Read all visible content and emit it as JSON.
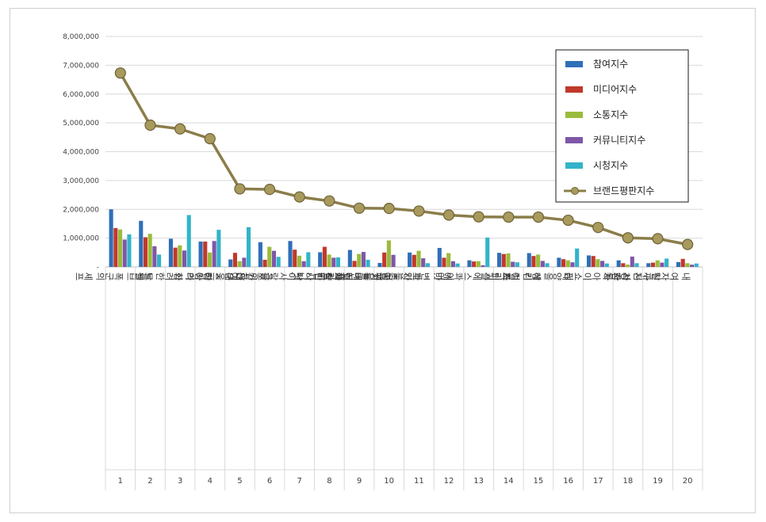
{
  "chart_data": {
    "type": "bar",
    "ylim": [
      0,
      8000000
    ],
    "yticks": [
      "8,000,000",
      "7,000,000",
      "6,000,000",
      "5,000,000",
      "4,000,000",
      "3,000,000",
      "2,000,000",
      "1,000,000",
      "-"
    ],
    "grid": true,
    "legend_position": "top-right",
    "categories": [
      "폭군의 셰프",
      "트웰브",
      "화려한 날들",
      "여왕의 집",
      "대운을 잡아라",
      "금쪽같은 내 스타",
      "첫, 사랑을 위하여",
      "착한사나이",
      "버터플라이",
      "여행을 대신해 드립니다",
      "파인: 촌뜨기들",
      "애마",
      "에스콰이어: 변호사를 꿈꾸는 변호사들",
      "트리거",
      "메리 킬즈 피플",
      "태양을 삼킨 여자",
      "아이쇼핑",
      "서초동",
      "달까지 가자",
      "내 여자친구는 상남자"
    ],
    "ranks": [
      "1",
      "2",
      "3",
      "4",
      "5",
      "6",
      "7",
      "8",
      "9",
      "10",
      "11",
      "12",
      "13",
      "14",
      "15",
      "16",
      "17",
      "18",
      "19",
      "20"
    ],
    "series": [
      {
        "name": "참여지수",
        "kind": "bar",
        "color": "#2f6fb8",
        "values": [
          2000000,
          1600000,
          980000,
          880000,
          260000,
          860000,
          900000,
          510000,
          590000,
          140000,
          500000,
          660000,
          230000,
          490000,
          480000,
          320000,
          400000,
          230000,
          130000,
          170000
        ]
      },
      {
        "name": "미디어지수",
        "kind": "bar",
        "color": "#c0392b",
        "values": [
          1350000,
          1030000,
          670000,
          880000,
          490000,
          250000,
          600000,
          700000,
          210000,
          500000,
          420000,
          320000,
          190000,
          450000,
          380000,
          270000,
          380000,
          130000,
          150000,
          280000
        ]
      },
      {
        "name": "소통지수",
        "kind": "bar",
        "color": "#9bbb3c",
        "values": [
          1300000,
          1150000,
          750000,
          500000,
          200000,
          700000,
          390000,
          430000,
          450000,
          920000,
          560000,
          480000,
          200000,
          470000,
          430000,
          230000,
          270000,
          80000,
          230000,
          130000
        ]
      },
      {
        "name": "커뮤니티지수",
        "kind": "bar",
        "color": "#7e57a8",
        "values": [
          950000,
          720000,
          570000,
          900000,
          320000,
          560000,
          200000,
          320000,
          520000,
          420000,
          300000,
          200000,
          60000,
          180000,
          210000,
          160000,
          210000,
          360000,
          150000,
          80000
        ]
      },
      {
        "name": "시청지수",
        "kind": "bar",
        "color": "#33b3c9",
        "values": [
          1130000,
          430000,
          1800000,
          1290000,
          1380000,
          350000,
          510000,
          330000,
          250000,
          0,
          130000,
          120000,
          1020000,
          160000,
          130000,
          640000,
          120000,
          130000,
          290000,
          120000
        ]
      },
      {
        "name": "브랜드평판지수",
        "kind": "line",
        "color": "#8b7d4a",
        "values": [
          6730000,
          4920000,
          4790000,
          4450000,
          2710000,
          2690000,
          2430000,
          2290000,
          2040000,
          2030000,
          1940000,
          1800000,
          1740000,
          1730000,
          1730000,
          1620000,
          1370000,
          1010000,
          980000,
          780000
        ]
      }
    ]
  }
}
